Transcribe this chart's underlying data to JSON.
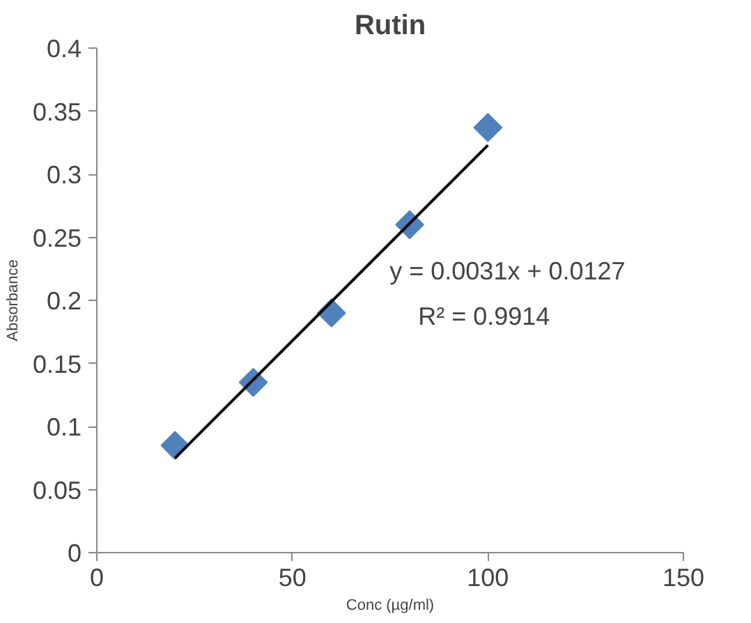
{
  "chart_data": {
    "type": "scatter",
    "title": "Rutin",
    "xlabel": "Conc (µg/ml)",
    "ylabel": "Absorbance",
    "x": [
      20,
      40,
      60,
      80,
      100
    ],
    "series": [
      {
        "color": "#4f81bd",
        "values": [
          0.085,
          0.135,
          0.19,
          0.26,
          0.337
        ]
      },
      {
        "type": "line",
        "marker": "none",
        "color": "#000000",
        "x": [
          20,
          100
        ],
        "values": [
          0.075,
          0.323
        ]
      }
    ],
    "annotations": [
      "y = 0.0031x + 0.0127",
      "R² = 0.9914"
    ],
    "xlim": [
      0,
      150
    ],
    "xticks": [
      0,
      50,
      100,
      150
    ],
    "ylim": [
      0,
      0.4
    ],
    "yticks": [
      0,
      0.05,
      0.1,
      0.15,
      0.2,
      0.25,
      0.3,
      0.35,
      0.4
    ],
    "grid": false,
    "marker": "diamond",
    "line_style": "solid"
  }
}
